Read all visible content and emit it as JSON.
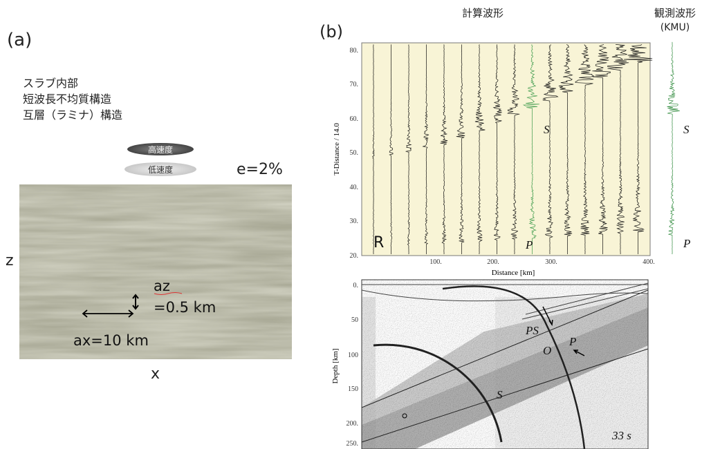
{
  "panel_a": {
    "label": "(a)",
    "description": [
      "スラブ内部",
      "短波長不均質構造",
      "互層（ラミナ）構造"
    ],
    "legend": {
      "high": "高速度",
      "low": "低速度"
    },
    "epsilon": "e=2%",
    "axis_z": "z",
    "axis_x": "x",
    "az_label": "az",
    "az_value": "=0.5 km",
    "ax_label": "ax=10 km"
  },
  "panel_b": {
    "label": "(b)",
    "synthetic_title": "計算波形",
    "observed_title": "観測波形",
    "observed_station": "(KMU)",
    "waveforms": {
      "y_label": "T-Distance / 14.0",
      "y_ticks": [
        "20.",
        "30.",
        "40.",
        "50.",
        "60.",
        "70.",
        "80."
      ],
      "x_label": "Distance [km]",
      "x_ticks": [
        "100.",
        "200.",
        "300.",
        "400."
      ],
      "component": "R",
      "phase_p": "P",
      "phase_s": "S",
      "observed_p": "P",
      "observed_s": "S"
    },
    "snapshot": {
      "y_label": "Depth [km]",
      "y_ticks": [
        "0.",
        "50",
        "100",
        "150",
        "200.",
        "250."
      ],
      "phase_ps": "PS",
      "phase_o": "O",
      "phase_p": "P",
      "phase_s": "S",
      "time": "33 s"
    }
  }
}
